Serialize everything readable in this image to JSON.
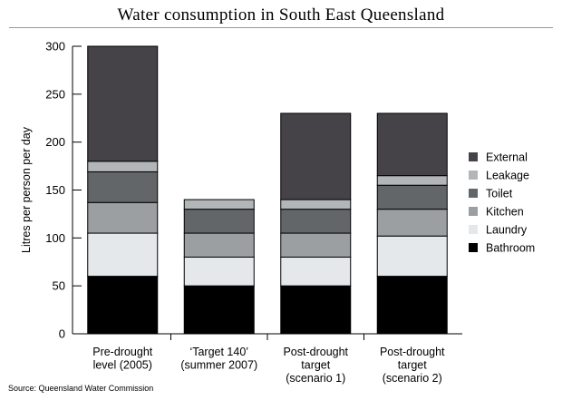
{
  "chart_data": {
    "type": "bar",
    "stacked": true,
    "title": "Water consumption in South East Queensland",
    "ylabel": "Litres per person per day",
    "xlabel": "",
    "ylim": [
      0,
      300
    ],
    "yticks": [
      0,
      50,
      100,
      150,
      200,
      250,
      300
    ],
    "grid": false,
    "legend_position": "right",
    "categories": [
      [
        "Pre-drought",
        "level (2005)"
      ],
      [
        "‘Target 140’",
        "(summer 2007)"
      ],
      [
        "Post-drought",
        "target",
        "(scenario 1)"
      ],
      [
        "Post-drought",
        "target",
        "(scenario 2)"
      ]
    ],
    "series": [
      {
        "name": "Bathroom",
        "color": "#000000",
        "values": [
          60,
          50,
          50,
          60
        ]
      },
      {
        "name": "Laundry",
        "color": "#e4e8eb",
        "values": [
          45,
          30,
          30,
          42
        ]
      },
      {
        "name": "Kitchen",
        "color": "#9c9fa1",
        "values": [
          32,
          25,
          25,
          28
        ]
      },
      {
        "name": "Toilet",
        "color": "#626668",
        "values": [
          32,
          25,
          25,
          25
        ]
      },
      {
        "name": "Leakage",
        "color": "#b3b6b8",
        "values": [
          11,
          10,
          10,
          10
        ]
      },
      {
        "name": "External",
        "color": "#454347",
        "values": [
          120,
          0,
          90,
          65
        ]
      }
    ],
    "source": "Source: Queensland Water Commission"
  }
}
